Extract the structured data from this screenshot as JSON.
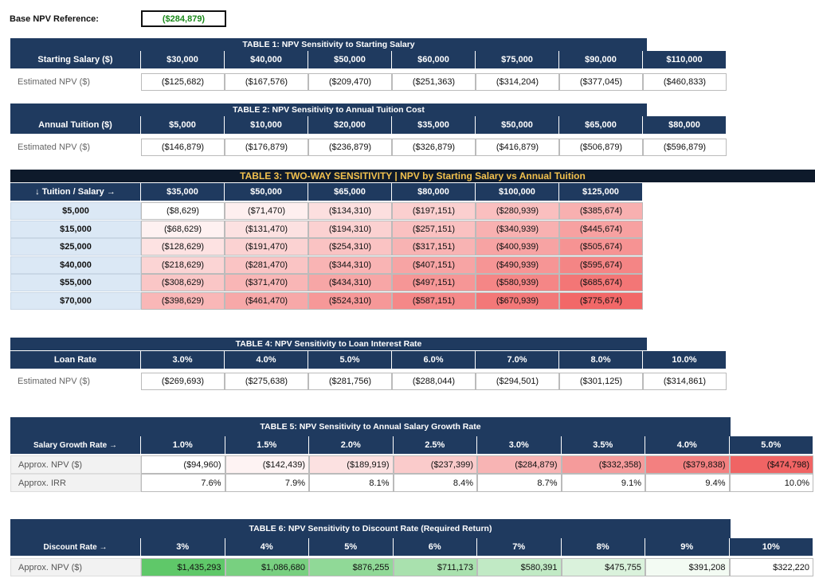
{
  "base": {
    "label": "Base NPV Reference:",
    "value": "($284,879)"
  },
  "tables": [
    {
      "title": "TABLE 1: NPV Sensitivity to Starting Salary",
      "header": [
        "Starting Salary ($)",
        "$30,000",
        "$40,000",
        "$50,000",
        "$60,000",
        "$75,000",
        "$90,000",
        "$110,000"
      ],
      "rows": [
        [
          "Estimated NPV ($)",
          "($125,682)",
          "($167,576)",
          "($209,470)",
          "($251,363)",
          "($314,204)",
          "($377,045)",
          "($460,833)"
        ]
      ]
    },
    {
      "title": "TABLE 2: NPV Sensitivity to Annual Tuition Cost",
      "header": [
        "Annual Tuition ($)",
        "$5,000",
        "$10,000",
        "$20,000",
        "$35,000",
        "$50,000",
        "$65,000",
        "$80,000"
      ],
      "rows": [
        [
          "Estimated NPV ($)",
          "($146,879)",
          "($176,879)",
          "($236,879)",
          "($326,879)",
          "($416,879)",
          "($506,879)",
          "($596,879)"
        ]
      ]
    },
    {
      "title": "TABLE 3: TWO-WAY SENSITIVITY  |  NPV by Starting Salary vs Annual Tuition",
      "header": [
        "↓ Tuition / Salary →",
        "$35,000",
        "$50,000",
        "$65,000",
        "$80,000",
        "$100,000",
        "$125,000"
      ],
      "rows": [
        [
          "$5,000",
          "($8,629)",
          "($71,470)",
          "($134,310)",
          "($197,151)",
          "($280,939)",
          "($385,674)"
        ],
        [
          "$15,000",
          "($68,629)",
          "($131,470)",
          "($194,310)",
          "($257,151)",
          "($340,939)",
          "($445,674)"
        ],
        [
          "$25,000",
          "($128,629)",
          "($191,470)",
          "($254,310)",
          "($317,151)",
          "($400,939)",
          "($505,674)"
        ],
        [
          "$40,000",
          "($218,629)",
          "($281,470)",
          "($344,310)",
          "($407,151)",
          "($490,939)",
          "($595,674)"
        ],
        [
          "$55,000",
          "($308,629)",
          "($371,470)",
          "($434,310)",
          "($497,151)",
          "($580,939)",
          "($685,674)"
        ],
        [
          "$70,000",
          "($398,629)",
          "($461,470)",
          "($524,310)",
          "($587,151)",
          "($670,939)",
          "($775,674)"
        ]
      ]
    },
    {
      "title": "TABLE 4: NPV Sensitivity to Loan Interest Rate",
      "header": [
        "Loan Rate",
        "3.0%",
        "4.0%",
        "5.0%",
        "6.0%",
        "7.0%",
        "8.0%",
        "10.0%"
      ],
      "rows": [
        [
          "Estimated NPV ($)",
          "($269,693)",
          "($275,638)",
          "($281,756)",
          "($288,044)",
          "($294,501)",
          "($301,125)",
          "($314,861)"
        ]
      ]
    },
    {
      "title": "TABLE 5: NPV Sensitivity to Annual Salary Growth Rate",
      "header": [
        "Salary Growth Rate →",
        "1.0%",
        "1.5%",
        "2.0%",
        "2.5%",
        "3.0%",
        "3.5%",
        "4.0%",
        "5.0%"
      ],
      "rows": [
        [
          "Approx. NPV ($)",
          "($94,960)",
          "($142,439)",
          "($189,919)",
          "($237,399)",
          "($284,879)",
          "($332,358)",
          "($379,838)",
          "($474,798)"
        ],
        [
          "Approx. IRR",
          "7.6%",
          "7.9%",
          "8.1%",
          "8.4%",
          "8.7%",
          "9.1%",
          "9.4%",
          "10.0%"
        ]
      ]
    },
    {
      "title": "TABLE 6: NPV Sensitivity to Discount Rate (Required Return)",
      "header": [
        "Discount Rate →",
        "3%",
        "4%",
        "5%",
        "6%",
        "7%",
        "8%",
        "9%",
        "10%"
      ],
      "rows": [
        [
          "Approx. NPV ($)",
          "$1,435,293",
          "$1,086,680",
          "$876,255",
          "$711,173",
          "$580,391",
          "$475,755",
          "$391,208",
          "$322,220"
        ]
      ]
    }
  ]
}
